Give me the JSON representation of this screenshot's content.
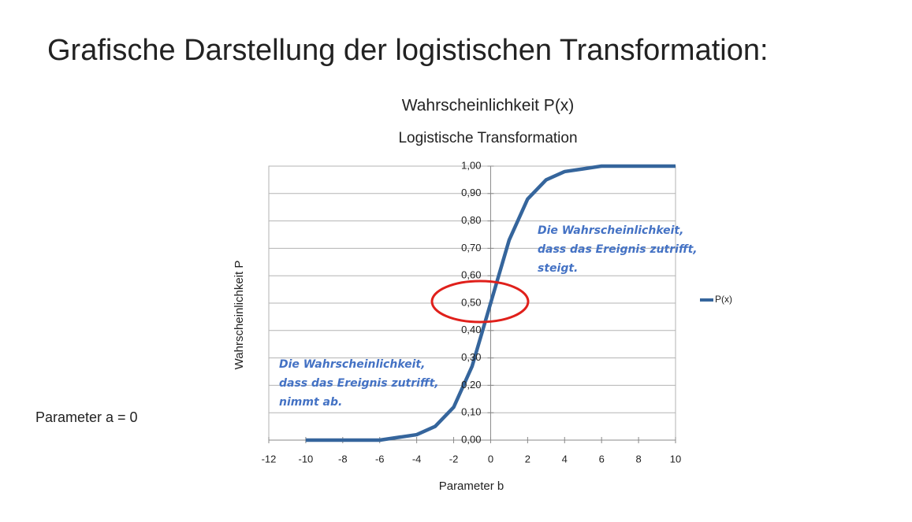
{
  "slide": {
    "title": "Grafische Darstellung der logistischen Transformation:",
    "note": "Parameter a = 0"
  },
  "chart_data": {
    "type": "line",
    "title": "Wahrscheinlichkeit P(x)",
    "subtitle": "Logistische Transformation",
    "x_label": "Parameter b",
    "y_label": "Wahrscheinlichkeit P",
    "x": [
      -10,
      -9,
      -8,
      -7,
      -6,
      -5,
      -4,
      -3,
      -2,
      -1,
      0,
      1,
      2,
      3,
      4,
      5,
      6,
      7,
      8,
      9,
      10
    ],
    "series": [
      {
        "name": "P(x)",
        "color": "#35659c",
        "values": [
          0.0,
          0.0,
          0.0,
          0.0,
          0.0,
          0.01,
          0.02,
          0.05,
          0.12,
          0.27,
          0.5,
          0.73,
          0.88,
          0.95,
          0.98,
          0.99,
          1.0,
          1.0,
          1.0,
          1.0,
          1.0
        ]
      }
    ],
    "xlim": [
      -12,
      10
    ],
    "xticks": [
      -12,
      -10,
      -8,
      -6,
      -4,
      -2,
      0,
      2,
      4,
      6,
      8,
      10
    ],
    "ylim": [
      0,
      1
    ],
    "yticks": [
      {
        "value": 0,
        "label": "0,00"
      },
      {
        "value": 0.1,
        "label": "0,10"
      },
      {
        "value": 0.2,
        "label": "0,20"
      },
      {
        "value": 0.3,
        "label": "0,30"
      },
      {
        "value": 0.4,
        "label": "0,40"
      },
      {
        "value": 0.5,
        "label": "0,50"
      },
      {
        "value": 0.6,
        "label": "0,60"
      },
      {
        "value": 0.7,
        "label": "0,70"
      },
      {
        "value": 0.8,
        "label": "0,80"
      },
      {
        "value": 0.9,
        "label": "0,90"
      },
      {
        "value": 1,
        "label": "1,00"
      }
    ],
    "grid": true,
    "legend": "right",
    "annotations": [
      [
        "Die Wahrscheinlichkeit,",
        "dass das Ereignis zutrifft,",
        "steigt."
      ],
      [
        "Die Wahrscheinlichkeit,",
        "dass das Ereignis zutrifft,",
        "nimmt ab."
      ]
    ]
  }
}
